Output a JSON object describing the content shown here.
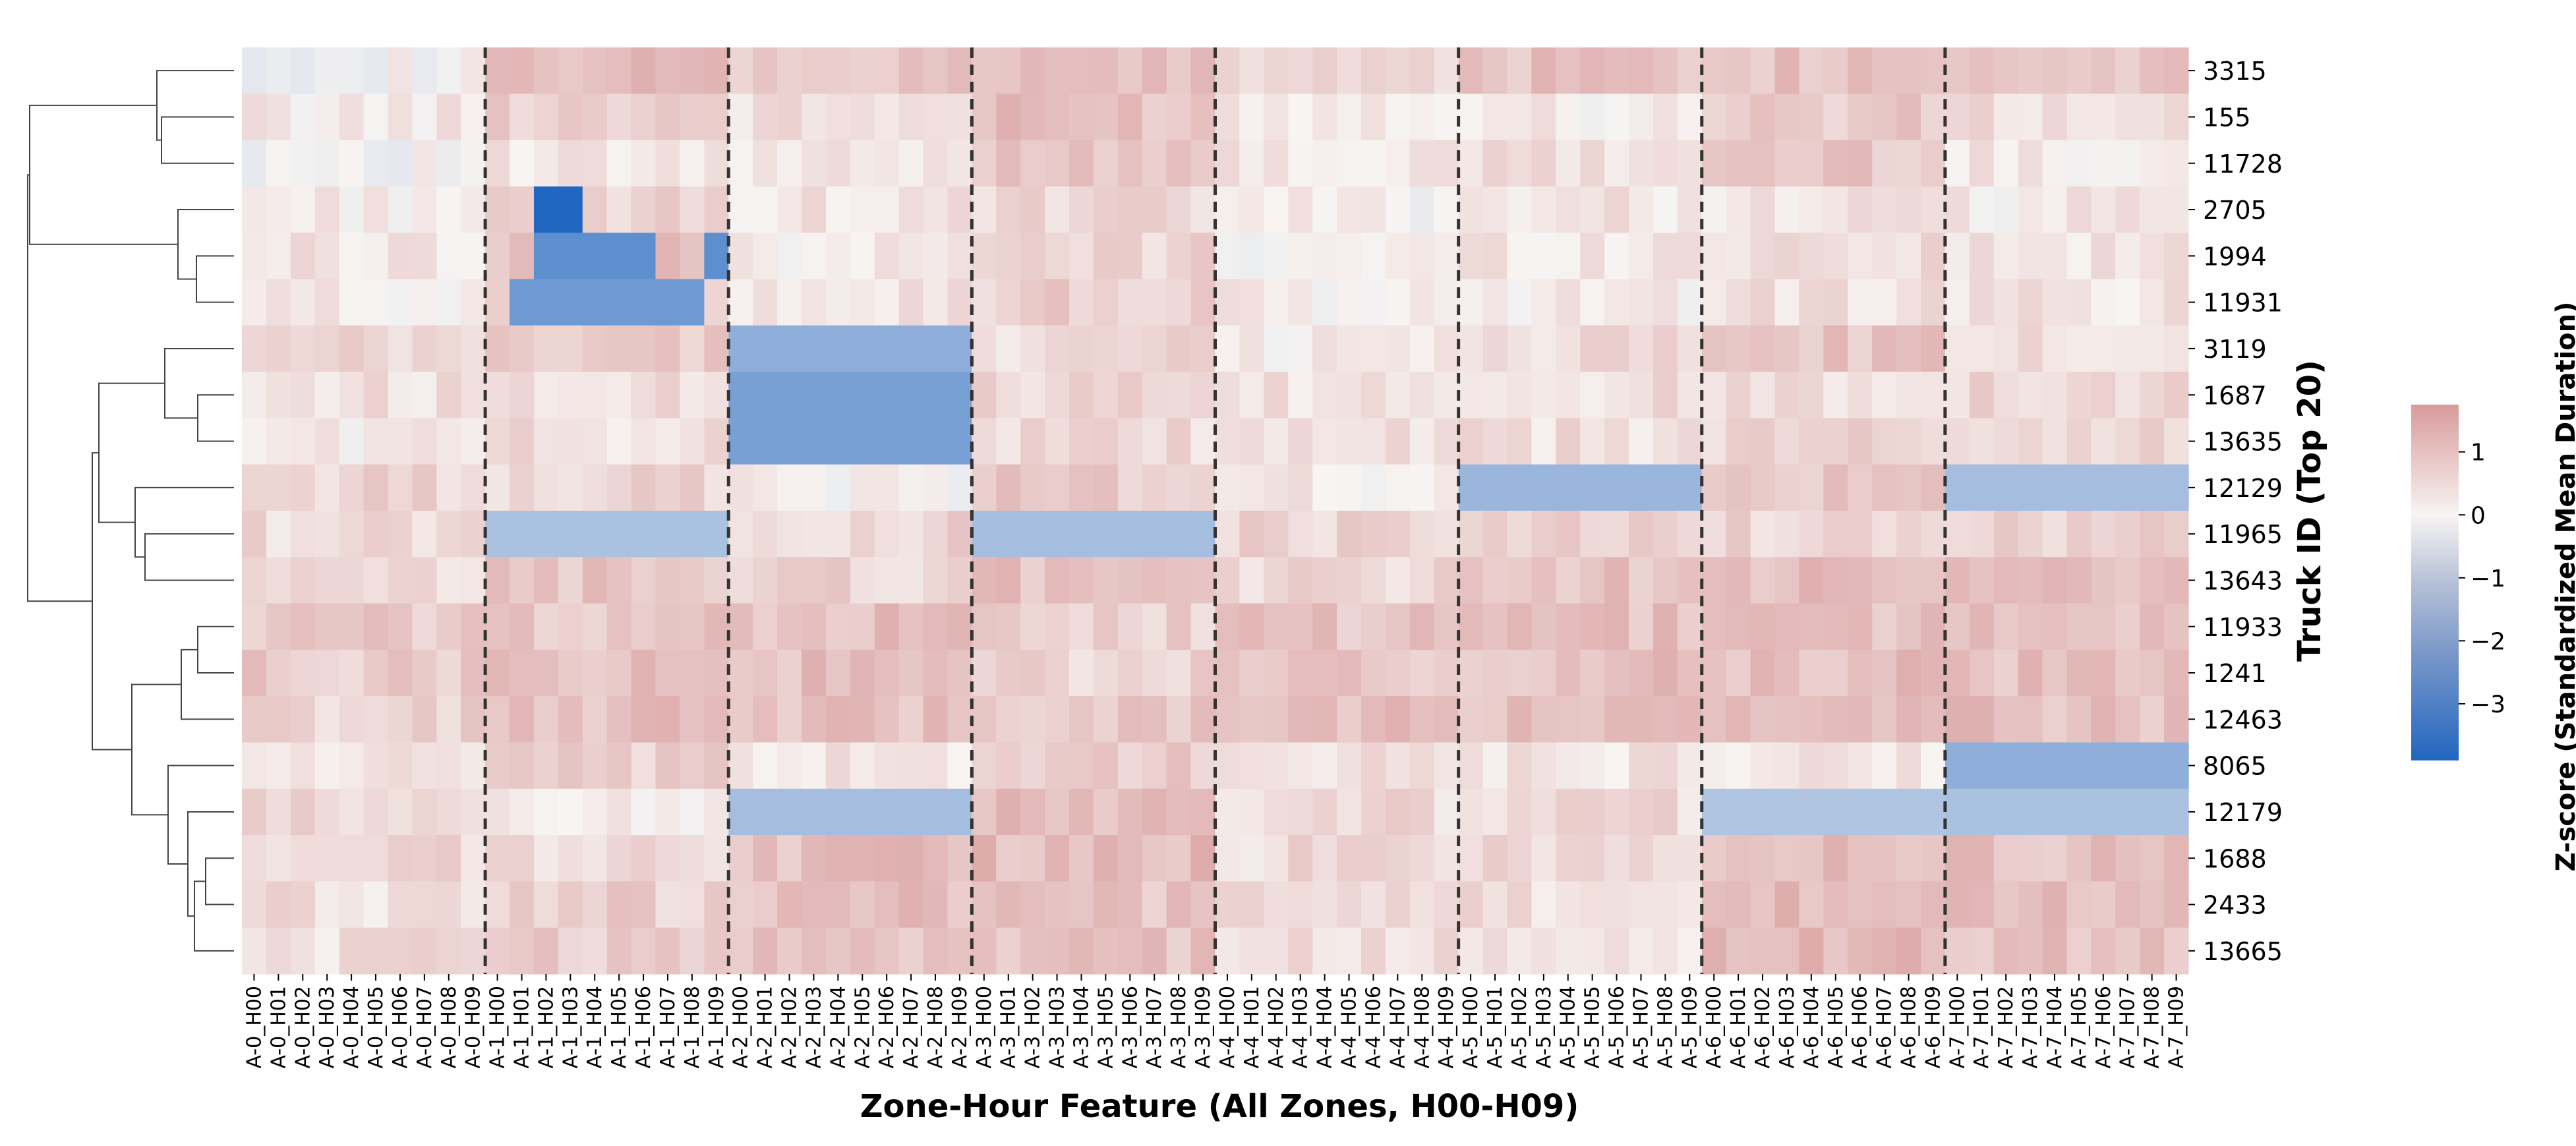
{
  "chart_data": {
    "type": "heatmap",
    "title": "",
    "xlabel": "Zone-Hour Feature (All Zones, H00-H09)",
    "ylabel": "Truck ID (Top 20)",
    "colorbar": {
      "label": "Z-score (Standardized Mean Duration)",
      "ticks": [
        "1",
        "0",
        "−1",
        "−2",
        "−3"
      ],
      "tick_values": [
        1,
        0,
        -1,
        -2,
        -3
      ],
      "vmin": -3.9,
      "vmax": 1.75,
      "colors": {
        "low": "#2166c0",
        "mid": "#f7f4f2",
        "high": "#d89b9b"
      }
    },
    "zones": [
      "A-0",
      "A-1",
      "A-2",
      "A-3",
      "A-4",
      "A-5",
      "A-6",
      "A-7"
    ],
    "hours": [
      "H00",
      "H01",
      "H02",
      "H03",
      "H04",
      "H05",
      "H06",
      "H07",
      "H08",
      "H09"
    ],
    "x_labels": [
      "A-0_H00",
      "A-0_H01",
      "A-0_H02",
      "A-0_H03",
      "A-0_H04",
      "A-0_H05",
      "A-0_H06",
      "A-0_H07",
      "A-0_H08",
      "A-0_H09",
      "A-1_H00",
      "A-1_H01",
      "A-1_H02",
      "A-1_H03",
      "A-1_H04",
      "A-1_H05",
      "A-1_H06",
      "A-1_H07",
      "A-1_H08",
      "A-1_H09",
      "A-2_H00",
      "A-2_H01",
      "A-2_H02",
      "A-2_H03",
      "A-2_H04",
      "A-2_H05",
      "A-2_H06",
      "A-2_H07",
      "A-2_H08",
      "A-2_H09",
      "A-3_H00",
      "A-3_H01",
      "A-3_H02",
      "A-3_H03",
      "A-3_H04",
      "A-3_H05",
      "A-3_H06",
      "A-3_H07",
      "A-3_H08",
      "A-3_H09",
      "A-4_H00",
      "A-4_H01",
      "A-4_H02",
      "A-4_H03",
      "A-4_H04",
      "A-4_H05",
      "A-4_H06",
      "A-4_H07",
      "A-4_H08",
      "A-4_H09",
      "A-5_H00",
      "A-5_H01",
      "A-5_H02",
      "A-5_H03",
      "A-5_H04",
      "A-5_H05",
      "A-5_H06",
      "A-5_H07",
      "A-5_H08",
      "A-5_H09",
      "A-6_H00",
      "A-6_H01",
      "A-6_H02",
      "A-6_H03",
      "A-6_H04",
      "A-6_H05",
      "A-6_H06",
      "A-6_H07",
      "A-6_H08",
      "A-6_H09",
      "A-7_H00",
      "A-7_H01",
      "A-7_H02",
      "A-7_H03",
      "A-7_H04",
      "A-7_H05",
      "A-7_H06",
      "A-7_H07",
      "A-7_H08",
      "A-7_H09"
    ],
    "rows": [
      "3315",
      "155",
      "11728",
      "2705",
      "1994",
      "11931",
      "3119",
      "1687",
      "13635",
      "12129",
      "11965",
      "13643",
      "11933",
      "1241",
      "12463",
      "8065",
      "12179",
      "1688",
      "2433",
      "13665"
    ],
    "zone_base": [
      [
        0.0,
        1.0,
        0.8,
        1.0,
        0.6,
        1.0,
        1.0,
        1.0
      ],
      [
        0.2,
        0.8,
        0.4,
        1.0,
        0.3,
        0.2,
        0.8,
        0.4
      ],
      [
        0.0,
        0.2,
        0.2,
        1.0,
        0.2,
        0.4,
        0.9,
        0.2
      ],
      [
        0.2,
        0.6,
        0.3,
        0.5,
        0.1,
        0.3,
        0.3,
        0.2
      ],
      [
        0.3,
        0.9,
        0.2,
        0.6,
        0.1,
        0.3,
        0.5,
        0.3
      ],
      [
        0.2,
        0.9,
        0.4,
        0.7,
        0.1,
        0.2,
        0.4,
        0.3
      ],
      [
        0.5,
        0.8,
        1.9,
        0.5,
        0.2,
        0.5,
        0.9,
        0.4
      ],
      [
        0.4,
        0.5,
        2.3,
        0.5,
        0.3,
        0.4,
        0.5,
        0.6
      ],
      [
        0.2,
        0.4,
        2.3,
        0.5,
        0.3,
        0.4,
        0.6,
        0.6
      ],
      [
        0.6,
        0.6,
        0.1,
        0.8,
        0.2,
        1.7,
        0.8,
        1.5
      ],
      [
        0.5,
        1.4,
        0.6,
        1.5,
        0.6,
        0.6,
        0.6,
        0.6
      ],
      [
        0.4,
        0.9,
        0.6,
        1.0,
        0.5,
        1.0,
        1.0,
        1.0
      ],
      [
        0.8,
        0.9,
        1.0,
        0.7,
        0.9,
        1.0,
        1.0,
        1.0
      ],
      [
        0.8,
        1.0,
        1.0,
        0.6,
        0.8,
        1.0,
        1.0,
        1.0
      ],
      [
        0.6,
        1.0,
        1.0,
        0.9,
        1.0,
        1.0,
        1.0,
        1.0
      ],
      [
        0.3,
        0.6,
        0.3,
        0.8,
        0.3,
        0.3,
        0.3,
        1.9
      ],
      [
        0.5,
        0.2,
        1.5,
        1.0,
        0.5,
        0.5,
        1.3,
        1.4
      ],
      [
        0.5,
        0.5,
        1.0,
        1.1,
        0.5,
        0.5,
        1.1,
        1.0
      ],
      [
        0.4,
        0.7,
        1.0,
        0.9,
        0.4,
        0.4,
        1.1,
        1.0
      ],
      [
        0.4,
        0.8,
        1.0,
        0.9,
        0.4,
        0.3,
        1.1,
        1.0
      ]
    ],
    "overrides": [
      {
        "row": "2705",
        "features": [
          "A-1_H02",
          "A-1_H03"
        ],
        "z": -3.9
      },
      {
        "row": "1994",
        "features": [
          "A-1_H02",
          "A-1_H03",
          "A-1_H04",
          "A-1_H05",
          "A-1_H06",
          "A-1_H09"
        ],
        "z": -2.8
      },
      {
        "row": "11931",
        "features": [
          "A-1_H01",
          "A-1_H02",
          "A-1_H03",
          "A-1_H04",
          "A-1_H05",
          "A-1_H06",
          "A-1_H07",
          "A-1_H08"
        ],
        "z": -2.5
      }
    ],
    "zone_boundaries": [
      "A-1_H00",
      "A-2_H00",
      "A-3_H00",
      "A-4_H00",
      "A-5_H00",
      "A-6_H00",
      "A-7_H00"
    ],
    "grid": false,
    "dendrogram": "left"
  }
}
